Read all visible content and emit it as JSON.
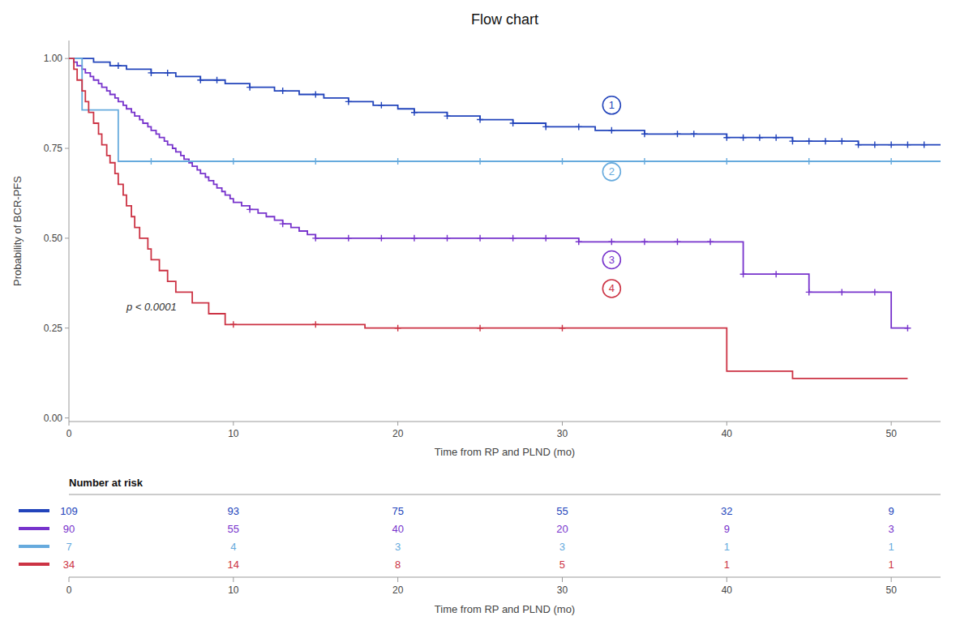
{
  "chart_data": {
    "type": "step",
    "title": "Flow chart",
    "x_label": "Time from RP and PLND (mo)",
    "y_label": "Probability of BCR-PFS",
    "xlim": [
      0,
      53
    ],
    "ylim": [
      -0.01,
      1.05
    ],
    "xticks": [
      0,
      10,
      20,
      30,
      40,
      50
    ],
    "yticks": [
      {
        "value": 0,
        "label": "0.00"
      },
      0.25,
      {
        "value": 0.5,
        "label": "0.50"
      },
      0.75,
      {
        "value": 1,
        "label": "1.00"
      }
    ],
    "grid": false,
    "series": [
      {
        "color": "#2244bb",
        "x": [
          0,
          0.5,
          1,
          1.5,
          2,
          2.5,
          3,
          3.5,
          4,
          4.5,
          5,
          5.5,
          6,
          6.5,
          7,
          7.5,
          8,
          8.5,
          9,
          9.5,
          10,
          10.5,
          11,
          11.5,
          12,
          12.5,
          13,
          13.5,
          14,
          14.5,
          15,
          15.5,
          16,
          16.5,
          17,
          17.5,
          18,
          18.5,
          19,
          19.5,
          20,
          20.5,
          21,
          21.5,
          22,
          22.5,
          23,
          23.5,
          24,
          24.5,
          25,
          25.5,
          26,
          26.5,
          27,
          27.5,
          28,
          28.5,
          29,
          29.5,
          30,
          31,
          32,
          33,
          34,
          35,
          36,
          37,
          38,
          39,
          40,
          41,
          42,
          43,
          44,
          45,
          46,
          47,
          48,
          49,
          50,
          51,
          52,
          53
        ],
        "values": [
          1.0,
          1.0,
          1.0,
          0.99,
          0.99,
          0.98,
          0.98,
          0.97,
          0.97,
          0.97,
          0.96,
          0.96,
          0.96,
          0.95,
          0.95,
          0.95,
          0.94,
          0.94,
          0.94,
          0.93,
          0.93,
          0.93,
          0.92,
          0.92,
          0.92,
          0.91,
          0.91,
          0.91,
          0.9,
          0.9,
          0.9,
          0.89,
          0.89,
          0.89,
          0.88,
          0.88,
          0.88,
          0.87,
          0.87,
          0.87,
          0.86,
          0.86,
          0.85,
          0.85,
          0.85,
          0.85,
          0.84,
          0.84,
          0.84,
          0.84,
          0.83,
          0.83,
          0.83,
          0.83,
          0.82,
          0.82,
          0.82,
          0.82,
          0.81,
          0.81,
          0.81,
          0.81,
          0.8,
          0.8,
          0.8,
          0.79,
          0.79,
          0.79,
          0.79,
          0.79,
          0.78,
          0.78,
          0.78,
          0.78,
          0.77,
          0.77,
          0.77,
          0.77,
          0.76,
          0.76,
          0.76,
          0.76,
          0.76,
          0.76
        ],
        "censor_x": [
          3,
          5,
          6,
          8,
          9,
          11,
          13,
          15,
          17,
          19,
          21,
          23,
          25,
          27,
          29,
          31,
          33,
          35,
          37,
          38,
          40,
          41,
          42,
          43,
          44,
          45,
          46,
          47,
          48,
          49,
          50,
          51,
          52
        ],
        "censor_values": [
          0.98,
          0.96,
          0.96,
          0.94,
          0.94,
          0.92,
          0.91,
          0.9,
          0.88,
          0.87,
          0.85,
          0.84,
          0.83,
          0.82,
          0.81,
          0.81,
          0.8,
          0.79,
          0.79,
          0.79,
          0.78,
          0.78,
          0.78,
          0.78,
          0.77,
          0.77,
          0.77,
          0.77,
          0.76,
          0.76,
          0.76,
          0.76,
          0.76
        ]
      },
      {
        "color": "#7733cc",
        "x": [
          0,
          0.3,
          0.5,
          0.8,
          1,
          1.3,
          1.5,
          1.8,
          2,
          2.3,
          2.5,
          2.8,
          3,
          3.3,
          3.5,
          3.8,
          4,
          4.3,
          4.5,
          4.8,
          5,
          5.3,
          5.5,
          5.8,
          6,
          6.3,
          6.5,
          6.8,
          7,
          7.3,
          7.5,
          7.8,
          8,
          8.3,
          8.5,
          8.8,
          9,
          9.3,
          9.5,
          9.8,
          10,
          10.5,
          11,
          11.5,
          12,
          12.5,
          13,
          13.5,
          14,
          14.5,
          15,
          15.5,
          16,
          16.5,
          17,
          17.5,
          18,
          18.5,
          19,
          19.5,
          20,
          21,
          22,
          23,
          24,
          25,
          26,
          27,
          28,
          29,
          30,
          31,
          32,
          33,
          34,
          35,
          36,
          37,
          38,
          39,
          40,
          41,
          42,
          43,
          44,
          45,
          46,
          47,
          48,
          49,
          50,
          51
        ],
        "values": [
          1.0,
          0.99,
          0.98,
          0.97,
          0.96,
          0.95,
          0.94,
          0.93,
          0.92,
          0.91,
          0.9,
          0.89,
          0.88,
          0.87,
          0.86,
          0.85,
          0.84,
          0.83,
          0.82,
          0.81,
          0.8,
          0.79,
          0.78,
          0.77,
          0.76,
          0.75,
          0.74,
          0.73,
          0.72,
          0.71,
          0.7,
          0.69,
          0.68,
          0.67,
          0.66,
          0.65,
          0.64,
          0.63,
          0.62,
          0.61,
          0.6,
          0.59,
          0.58,
          0.57,
          0.56,
          0.55,
          0.54,
          0.53,
          0.52,
          0.51,
          0.5,
          0.5,
          0.5,
          0.5,
          0.5,
          0.5,
          0.5,
          0.5,
          0.5,
          0.5,
          0.5,
          0.5,
          0.5,
          0.5,
          0.5,
          0.5,
          0.5,
          0.5,
          0.5,
          0.5,
          0.5,
          0.49,
          0.49,
          0.49,
          0.49,
          0.49,
          0.49,
          0.49,
          0.49,
          0.49,
          0.49,
          0.4,
          0.4,
          0.4,
          0.4,
          0.35,
          0.35,
          0.35,
          0.35,
          0.35,
          0.25,
          0.25
        ],
        "censor_x": [
          11,
          13,
          15,
          17,
          19,
          21,
          23,
          25,
          27,
          29,
          31,
          33,
          35,
          37,
          39,
          41,
          43,
          45,
          47,
          49,
          51
        ],
        "censor_values": [
          0.58,
          0.54,
          0.5,
          0.5,
          0.5,
          0.5,
          0.5,
          0.5,
          0.5,
          0.5,
          0.49,
          0.49,
          0.49,
          0.49,
          0.49,
          0.4,
          0.4,
          0.35,
          0.35,
          0.35,
          0.25
        ]
      },
      {
        "color": "#66aadd",
        "x": [
          0,
          0.8,
          0.8,
          3,
          3,
          53
        ],
        "values": [
          1.0,
          1.0,
          0.857,
          0.857,
          0.714,
          0.714
        ],
        "censor_x": [
          5,
          10,
          15,
          20,
          25,
          30,
          35,
          40,
          45,
          50
        ],
        "censor_values": [
          0.714,
          0.714,
          0.714,
          0.714,
          0.714,
          0.714,
          0.714,
          0.714,
          0.714,
          0.714
        ]
      },
      {
        "color": "#cc3344",
        "x": [
          0,
          0.3,
          0.5,
          0.8,
          1,
          1.2,
          1.5,
          1.8,
          2,
          2.3,
          2.5,
          2.8,
          3,
          3.3,
          3.5,
          3.8,
          4,
          4.3,
          4.5,
          4.8,
          5,
          5.5,
          6,
          6.5,
          7,
          7.5,
          8,
          8.5,
          9,
          9.5,
          10,
          11,
          12,
          13,
          14,
          15,
          16,
          17,
          18,
          19,
          20,
          21,
          22,
          23,
          24,
          25,
          26,
          27,
          28,
          29,
          30,
          31,
          32,
          33,
          34,
          35,
          36,
          37,
          38,
          39,
          40,
          41,
          42,
          43,
          44,
          45,
          46,
          47,
          48,
          49,
          50,
          51
        ],
        "values": [
          1.0,
          0.97,
          0.94,
          0.91,
          0.88,
          0.85,
          0.82,
          0.79,
          0.76,
          0.73,
          0.71,
          0.68,
          0.65,
          0.62,
          0.59,
          0.56,
          0.53,
          0.5,
          0.5,
          0.47,
          0.44,
          0.41,
          0.38,
          0.35,
          0.35,
          0.32,
          0.32,
          0.29,
          0.29,
          0.26,
          0.26,
          0.26,
          0.26,
          0.26,
          0.26,
          0.26,
          0.26,
          0.26,
          0.25,
          0.25,
          0.25,
          0.25,
          0.25,
          0.25,
          0.25,
          0.25,
          0.25,
          0.25,
          0.25,
          0.25,
          0.25,
          0.25,
          0.25,
          0.25,
          0.25,
          0.25,
          0.25,
          0.25,
          0.25,
          0.25,
          0.13,
          0.13,
          0.13,
          0.13,
          0.11,
          0.11,
          0.11,
          0.11,
          0.11,
          0.11,
          0.11,
          0.11
        ],
        "censor_x": [
          10,
          15,
          20,
          25,
          30
        ],
        "censor_values": [
          0.26,
          0.26,
          0.25,
          0.25,
          0.25
        ]
      }
    ],
    "annotations": [
      {
        "text": "1",
        "x": 33,
        "y": 0.87,
        "color": "#2244bb"
      },
      {
        "text": "2",
        "x": 33,
        "y": 0.685,
        "color": "#66aadd"
      },
      {
        "text": "3",
        "x": 33,
        "y": 0.44,
        "color": "#7733cc"
      },
      {
        "text": "4",
        "x": 33,
        "y": 0.36,
        "color": "#cc3344"
      }
    ],
    "p_value": {
      "text": "p < 0.0001",
      "x": 3.5,
      "y": 0.3
    },
    "risk_table": {
      "title": "Number at risk",
      "times": [
        0,
        10,
        20,
        30,
        40,
        50
      ],
      "rows": [
        [
          109,
          93,
          75,
          55,
          32,
          9
        ],
        [
          90,
          55,
          40,
          20,
          9,
          3
        ],
        [
          7,
          4,
          3,
          3,
          1,
          1
        ],
        [
          34,
          14,
          8,
          5,
          1,
          1
        ]
      ]
    }
  }
}
